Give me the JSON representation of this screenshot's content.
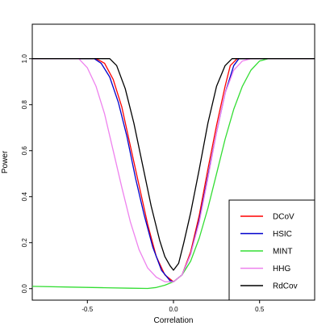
{
  "chart_data": {
    "type": "line",
    "title": "",
    "xlabel": "Correlation",
    "ylabel": "Power",
    "xlim": [
      -0.82,
      0.82
    ],
    "ylim": [
      -0.05,
      1.15
    ],
    "xticks": [
      -0.5,
      0.0,
      0.5
    ],
    "xtick_labels": [
      "-0.5",
      "0.0",
      "0.5"
    ],
    "yticks": [
      0.0,
      0.2,
      0.4,
      0.6,
      0.8,
      1.0
    ],
    "ytick_labels": [
      "0.0",
      "0.2",
      "0.4",
      "0.6",
      "0.8",
      "1.0"
    ],
    "grid": false,
    "legend_position": "bottom-right",
    "series": [
      {
        "name": "DCoV",
        "color": "#ff0000",
        "x": [
          -0.82,
          -0.45,
          -0.4,
          -0.35,
          -0.3,
          -0.25,
          -0.2,
          -0.15,
          -0.1,
          -0.05,
          0.0,
          0.05,
          0.1,
          0.15,
          0.2,
          0.25,
          0.3,
          0.33,
          0.37,
          0.4,
          0.82
        ],
        "y": [
          1.0,
          1.0,
          0.98,
          0.91,
          0.79,
          0.62,
          0.45,
          0.28,
          0.14,
          0.06,
          0.03,
          0.06,
          0.16,
          0.32,
          0.52,
          0.71,
          0.88,
          0.97,
          1.0,
          1.0,
          1.0
        ]
      },
      {
        "name": "HSIC",
        "color": "#0000cc",
        "x": [
          -0.82,
          -0.46,
          -0.42,
          -0.37,
          -0.32,
          -0.27,
          -0.22,
          -0.17,
          -0.12,
          -0.07,
          -0.02,
          0.0,
          0.05,
          0.1,
          0.15,
          0.2,
          0.25,
          0.3,
          0.35,
          0.38,
          0.82
        ],
        "y": [
          1.0,
          1.0,
          0.98,
          0.92,
          0.81,
          0.66,
          0.48,
          0.32,
          0.18,
          0.08,
          0.035,
          0.03,
          0.06,
          0.15,
          0.3,
          0.49,
          0.68,
          0.85,
          0.97,
          1.0,
          1.0
        ]
      },
      {
        "name": "MINT",
        "color": "#33dd33",
        "x": [
          -0.82,
          -0.6,
          -0.4,
          -0.25,
          -0.15,
          -0.1,
          -0.05,
          0.0,
          0.05,
          0.1,
          0.15,
          0.2,
          0.25,
          0.3,
          0.35,
          0.4,
          0.45,
          0.5,
          0.55,
          0.82
        ],
        "y": [
          0.01,
          0.007,
          0.004,
          0.002,
          0.001,
          0.005,
          0.015,
          0.03,
          0.06,
          0.12,
          0.22,
          0.35,
          0.5,
          0.65,
          0.78,
          0.88,
          0.95,
          0.99,
          1.0,
          1.0
        ]
      },
      {
        "name": "HHG",
        "color": "#ee82ee",
        "x": [
          -0.82,
          -0.55,
          -0.5,
          -0.45,
          -0.4,
          -0.35,
          -0.3,
          -0.25,
          -0.2,
          -0.15,
          -0.1,
          -0.05,
          0.0,
          0.05,
          0.1,
          0.15,
          0.2,
          0.25,
          0.3,
          0.35,
          0.4,
          0.45,
          0.82
        ],
        "y": [
          1.0,
          1.0,
          0.96,
          0.88,
          0.76,
          0.6,
          0.44,
          0.29,
          0.17,
          0.09,
          0.05,
          0.03,
          0.03,
          0.06,
          0.15,
          0.29,
          0.48,
          0.68,
          0.85,
          0.95,
          0.99,
          1.0,
          1.0
        ]
      },
      {
        "name": "RdCov",
        "color": "#000000",
        "x": [
          -0.82,
          -0.37,
          -0.33,
          -0.28,
          -0.23,
          -0.18,
          -0.13,
          -0.08,
          -0.05,
          -0.02,
          0.0,
          0.03,
          0.06,
          0.1,
          0.15,
          0.2,
          0.25,
          0.3,
          0.34,
          0.82
        ],
        "y": [
          1.0,
          1.0,
          0.97,
          0.87,
          0.72,
          0.54,
          0.36,
          0.21,
          0.14,
          0.1,
          0.08,
          0.11,
          0.2,
          0.33,
          0.52,
          0.72,
          0.88,
          0.97,
          1.0,
          1.0
        ]
      }
    ]
  }
}
